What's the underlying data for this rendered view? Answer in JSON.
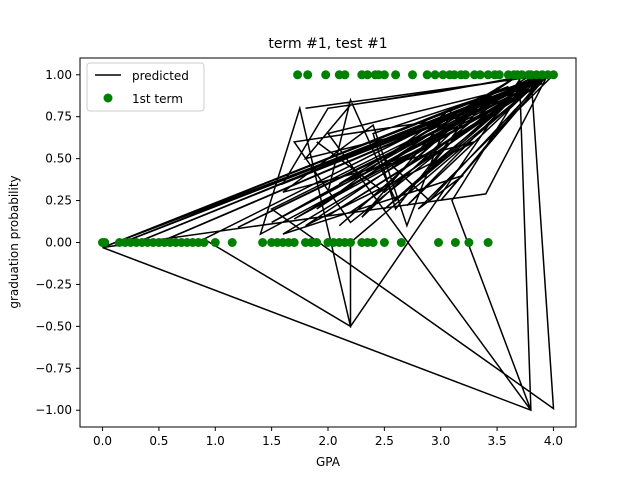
{
  "chart_data": {
    "type": "scatter",
    "title": "term #1, test #1",
    "xlabel": "GPA",
    "ylabel": "graduation probability",
    "xlim": [
      -0.2,
      4.2
    ],
    "ylim": [
      -1.1,
      1.1
    ],
    "xticks": [
      "0.0",
      "0.5",
      "1.0",
      "1.5",
      "2.0",
      "2.5",
      "3.0",
      "3.5",
      "4.0"
    ],
    "xtick_values": [
      0,
      0.5,
      1,
      1.5,
      2,
      2.5,
      3,
      3.5,
      4
    ],
    "yticks": [
      "−1.00",
      "−0.75",
      "−0.50",
      "−0.25",
      "0.00",
      "0.25",
      "0.50",
      "0.75",
      "1.00"
    ],
    "ytick_values": [
      -1,
      -0.75,
      -0.5,
      -0.25,
      0,
      0.25,
      0.5,
      0.75,
      1
    ],
    "grid": false,
    "legend": {
      "location": "upper left",
      "entries": [
        "predicted",
        "1st term"
      ]
    },
    "series": [
      {
        "name": "predicted",
        "kind": "line",
        "color": "#000000",
        "points": [
          [
            0.0,
            -0.03
          ],
          [
            3.9,
            0.97
          ],
          [
            0.1,
            -0.02
          ],
          [
            3.95,
            1.0
          ],
          [
            0.3,
            0.0
          ],
          [
            3.8,
            0.95
          ],
          [
            0.5,
            0.0
          ],
          [
            4.0,
            1.0
          ],
          [
            2.8,
            0.2
          ],
          [
            3.2,
            0.4
          ],
          [
            1.6,
            0.05
          ],
          [
            3.9,
            0.98
          ],
          [
            1.2,
            0.09
          ],
          [
            3.7,
            0.9
          ],
          [
            1.5,
            0.12
          ],
          [
            3.85,
            1.0
          ],
          [
            1.7,
            0.14
          ],
          [
            3.9,
            0.95
          ],
          [
            2.0,
            0.16
          ],
          [
            3.75,
            0.9
          ],
          [
            2.2,
            0.18
          ],
          [
            3.95,
            1.0
          ],
          [
            2.5,
            0.2
          ],
          [
            3.8,
            0.97
          ],
          [
            2.7,
            0.22
          ],
          [
            3.9,
            0.98
          ],
          [
            3.0,
            0.25
          ],
          [
            3.95,
            1.0
          ],
          [
            3.4,
            0.29
          ],
          [
            0.0,
            -0.03
          ],
          [
            3.8,
            -1.0
          ],
          [
            3.7,
            0.97
          ],
          [
            2.2,
            -0.5
          ],
          [
            1.75,
            0.8
          ],
          [
            1.4,
            0.05
          ],
          [
            3.9,
            0.95
          ],
          [
            2.0,
            0.3
          ],
          [
            2.2,
            0.85
          ],
          [
            2.6,
            0.25
          ],
          [
            3.85,
            0.98
          ],
          [
            2.3,
            0.4
          ],
          [
            1.9,
            0.6
          ],
          [
            2.5,
            0.3
          ],
          [
            3.6,
            0.9
          ],
          [
            1.5,
            0.2
          ],
          [
            4.0,
            -0.99
          ],
          [
            3.8,
            1.0
          ],
          [
            1.8,
            0.1
          ],
          [
            3.3,
            0.6
          ],
          [
            1.6,
            0.3
          ],
          [
            2.4,
            0.7
          ],
          [
            2.7,
            0.1
          ],
          [
            3.1,
            0.8
          ],
          [
            1.9,
            0.2
          ],
          [
            3.7,
            1.0
          ],
          [
            2.1,
            0.35
          ],
          [
            2.8,
            0.55
          ],
          [
            3.4,
            0.85
          ],
          [
            2.3,
            0.15
          ],
          [
            3.0,
            0.7
          ],
          [
            1.8,
            0.5
          ],
          [
            2.2,
            0.82
          ],
          [
            3.9,
            1.0
          ],
          [
            2.9,
            0.45
          ],
          [
            3.5,
            0.92
          ],
          [
            2.1,
            0.1
          ],
          [
            3.2,
            0.75
          ],
          [
            1.7,
            0.6
          ],
          [
            2.2,
            0.12
          ],
          [
            3.75,
            0.95
          ],
          [
            2.4,
            0.65
          ],
          [
            2.6,
            0.2
          ],
          [
            3.3,
            0.8
          ],
          [
            1.6,
            0.35
          ],
          [
            2.0,
            0.8
          ],
          [
            3.0,
            0.9
          ],
          [
            3.8,
            1.0
          ],
          [
            3.1,
            0.25
          ],
          [
            3.8,
            -1.0
          ],
          [
            2.0,
            0.65
          ],
          [
            3.4,
            0.88
          ],
          [
            2.5,
            0.5
          ],
          [
            2.9,
            0.25
          ],
          [
            3.95,
            1.0
          ],
          [
            1.8,
            0.8
          ],
          [
            3.95,
            1.0
          ],
          [
            2.2,
            0.0
          ],
          [
            2.2,
            -0.5
          ],
          [
            0.9,
            0.02
          ],
          [
            3.6,
            0.93
          ],
          [
            0.0,
            -0.03
          ],
          [
            3.9,
            1.0
          ],
          [
            3.8,
            0.98
          ]
        ]
      },
      {
        "name": "1st term",
        "kind": "scatter",
        "color": "#008000",
        "points": [
          [
            0.0,
            0
          ],
          [
            0.02,
            0
          ],
          [
            0.15,
            0
          ],
          [
            0.2,
            0
          ],
          [
            0.25,
            0
          ],
          [
            0.3,
            0
          ],
          [
            0.35,
            0
          ],
          [
            0.4,
            0
          ],
          [
            0.45,
            0
          ],
          [
            0.5,
            0
          ],
          [
            0.55,
            0
          ],
          [
            0.6,
            0
          ],
          [
            0.65,
            0
          ],
          [
            0.7,
            0
          ],
          [
            0.75,
            0
          ],
          [
            0.8,
            0
          ],
          [
            0.85,
            0
          ],
          [
            0.9,
            0
          ],
          [
            1.0,
            0
          ],
          [
            1.15,
            0
          ],
          [
            1.42,
            0
          ],
          [
            1.5,
            0
          ],
          [
            1.55,
            0
          ],
          [
            1.6,
            0
          ],
          [
            1.65,
            0
          ],
          [
            1.7,
            0
          ],
          [
            1.8,
            0
          ],
          [
            1.85,
            0
          ],
          [
            1.9,
            0
          ],
          [
            2.0,
            0
          ],
          [
            2.05,
            0
          ],
          [
            2.1,
            0
          ],
          [
            2.15,
            0
          ],
          [
            2.2,
            0
          ],
          [
            2.3,
            0
          ],
          [
            2.35,
            0
          ],
          [
            2.4,
            0
          ],
          [
            2.5,
            0
          ],
          [
            2.65,
            0
          ],
          [
            2.98,
            0
          ],
          [
            3.13,
            0
          ],
          [
            3.25,
            0
          ],
          [
            3.42,
            0
          ],
          [
            1.73,
            1
          ],
          [
            1.82,
            1
          ],
          [
            1.98,
            1
          ],
          [
            2.1,
            1
          ],
          [
            2.15,
            1
          ],
          [
            2.3,
            1
          ],
          [
            2.35,
            1
          ],
          [
            2.42,
            1
          ],
          [
            2.45,
            1
          ],
          [
            2.5,
            1
          ],
          [
            2.6,
            1
          ],
          [
            2.75,
            1
          ],
          [
            2.88,
            1
          ],
          [
            2.95,
            1
          ],
          [
            3.02,
            1
          ],
          [
            3.08,
            1
          ],
          [
            3.12,
            1
          ],
          [
            3.18,
            1
          ],
          [
            3.22,
            1
          ],
          [
            3.3,
            1
          ],
          [
            3.35,
            1
          ],
          [
            3.42,
            1
          ],
          [
            3.48,
            1
          ],
          [
            3.52,
            1
          ],
          [
            3.6,
            1
          ],
          [
            3.65,
            1
          ],
          [
            3.68,
            1
          ],
          [
            3.72,
            1
          ],
          [
            3.78,
            1
          ],
          [
            3.8,
            1
          ],
          [
            3.85,
            1
          ],
          [
            3.9,
            1
          ],
          [
            3.95,
            1
          ],
          [
            4.0,
            1
          ]
        ]
      }
    ]
  }
}
